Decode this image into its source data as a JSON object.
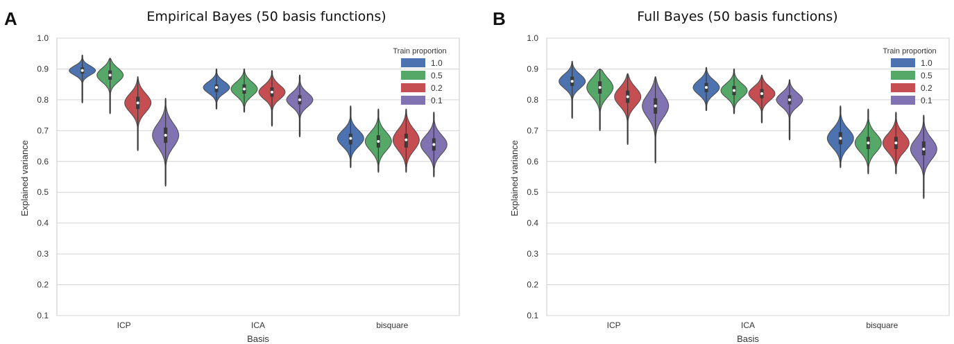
{
  "chart_data": [
    {
      "type": "violin",
      "panel_label": "A",
      "title": "Empirical Bayes  (50 basis functions)",
      "xlabel": "Basis",
      "ylabel": "Explained variance",
      "ylim": [
        0.1,
        1.0
      ],
      "yticks": [
        "0.1",
        "0.2",
        "0.3",
        "0.4",
        "0.5",
        "0.6",
        "0.7",
        "0.8",
        "0.9",
        "1.0"
      ],
      "categories": [
        "ICP",
        "ICA",
        "bisquare"
      ],
      "grid": true,
      "legend": {
        "title": "Train proportion",
        "placement": "top-right",
        "entries": [
          "1.0",
          "0.5",
          "0.2",
          "0.1"
        ]
      },
      "series": [
        {
          "name": "1.0",
          "color": "#4c72b0",
          "medians": [
            0.895,
            0.84,
            0.675
          ],
          "q1": [
            0.885,
            0.825,
            0.655
          ],
          "q3": [
            0.905,
            0.85,
            0.69
          ],
          "mins": [
            0.79,
            0.77,
            0.58
          ],
          "maxs": [
            0.945,
            0.9,
            0.78
          ]
        },
        {
          "name": "0.5",
          "color": "#55a868",
          "medians": [
            0.88,
            0.835,
            0.665
          ],
          "q1": [
            0.865,
            0.82,
            0.645
          ],
          "q3": [
            0.895,
            0.85,
            0.685
          ],
          "mins": [
            0.755,
            0.76,
            0.565
          ],
          "maxs": [
            0.935,
            0.9,
            0.77
          ]
        },
        {
          "name": "0.2",
          "color": "#c44e52",
          "medians": [
            0.79,
            0.825,
            0.67
          ],
          "q1": [
            0.77,
            0.81,
            0.645
          ],
          "q3": [
            0.81,
            0.84,
            0.69
          ],
          "mins": [
            0.635,
            0.715,
            0.565
          ],
          "maxs": [
            0.875,
            0.895,
            0.77
          ]
        },
        {
          "name": "0.1",
          "color": "#8172b2",
          "medians": [
            0.685,
            0.8,
            0.655
          ],
          "q1": [
            0.66,
            0.785,
            0.635
          ],
          "q3": [
            0.71,
            0.815,
            0.675
          ],
          "mins": [
            0.52,
            0.68,
            0.55
          ],
          "maxs": [
            0.805,
            0.88,
            0.76
          ]
        }
      ]
    },
    {
      "type": "violin",
      "panel_label": "B",
      "title": "Full Bayes (50 basis functions)",
      "xlabel": "Basis",
      "ylabel": "Explained variance",
      "ylim": [
        0.1,
        1.0
      ],
      "yticks": [
        "0.1",
        "0.2",
        "0.3",
        "0.4",
        "0.5",
        "0.6",
        "0.7",
        "0.8",
        "0.9",
        "1.0"
      ],
      "categories": [
        "ICP",
        "ICA",
        "bisquare"
      ],
      "grid": true,
      "legend": {
        "title": "Train proportion",
        "placement": "top-right",
        "entries": [
          "1.0",
          "0.5",
          "0.2",
          "0.1"
        ]
      },
      "series": [
        {
          "name": "1.0",
          "color": "#4c72b0",
          "medians": [
            0.86,
            0.84,
            0.675
          ],
          "q1": [
            0.845,
            0.825,
            0.655
          ],
          "q3": [
            0.875,
            0.855,
            0.695
          ],
          "mins": [
            0.74,
            0.765,
            0.58
          ],
          "maxs": [
            0.925,
            0.905,
            0.78
          ]
        },
        {
          "name": "0.5",
          "color": "#55a868",
          "medians": [
            0.84,
            0.83,
            0.66
          ],
          "q1": [
            0.82,
            0.815,
            0.64
          ],
          "q3": [
            0.86,
            0.845,
            0.68
          ],
          "mins": [
            0.7,
            0.755,
            0.56
          ],
          "maxs": [
            0.9,
            0.9,
            0.77
          ]
        },
        {
          "name": "0.2",
          "color": "#c44e52",
          "medians": [
            0.81,
            0.82,
            0.66
          ],
          "q1": [
            0.79,
            0.805,
            0.64
          ],
          "q3": [
            0.83,
            0.835,
            0.68
          ],
          "mins": [
            0.655,
            0.725,
            0.56
          ],
          "maxs": [
            0.885,
            0.88,
            0.76
          ]
        },
        {
          "name": "0.1",
          "color": "#8172b2",
          "medians": [
            0.78,
            0.8,
            0.64
          ],
          "q1": [
            0.755,
            0.785,
            0.62
          ],
          "q3": [
            0.805,
            0.815,
            0.665
          ],
          "mins": [
            0.595,
            0.67,
            0.48
          ],
          "maxs": [
            0.875,
            0.865,
            0.75
          ]
        }
      ]
    }
  ]
}
